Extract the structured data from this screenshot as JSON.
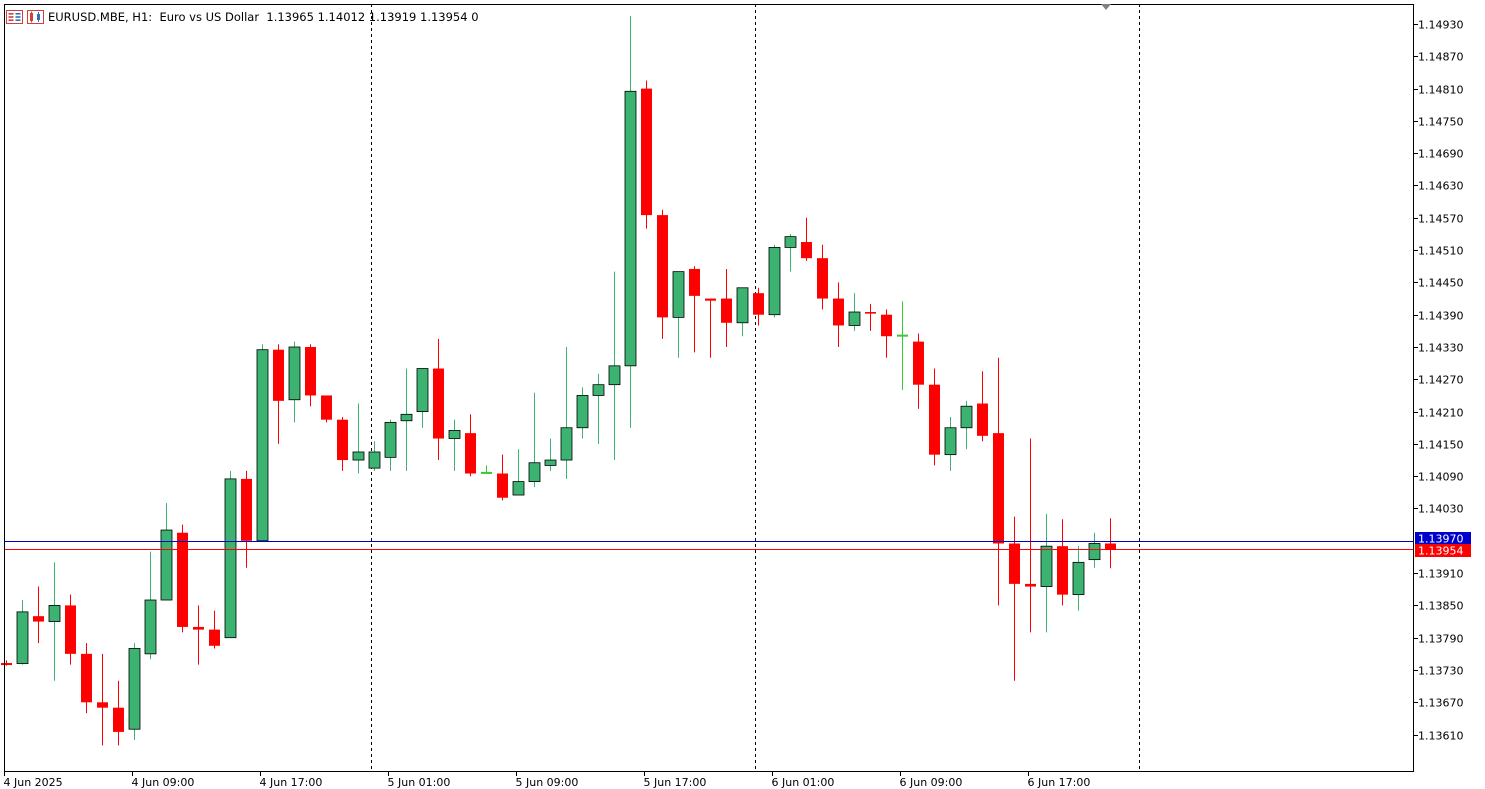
{
  "header": {
    "symbol": "EURUSD.MBE, H1:",
    "description": "Euro vs US Dollar",
    "ohlc": "1.13965 1.14012 1.13919 1.13954",
    "volume": "0",
    "icons": [
      "trade-panel-icon",
      "chart-properties-icon"
    ]
  },
  "colors": {
    "bull": "#3CB371",
    "bear": "#FF0000",
    "doji": "#32CD32",
    "bid_line": "#FF0000",
    "ask_line": "#0000CD",
    "grid_separator": "#000000",
    "background": "#FFFFFF"
  },
  "chart_data": {
    "type": "candlestick",
    "symbol": "EURUSD.MBE",
    "timeframe": "H1",
    "ylim": [
      1.1358,
      1.1498
    ],
    "y_ticks": [
      "1.14930",
      "1.14870",
      "1.14810",
      "1.14750",
      "1.14690",
      "1.14630",
      "1.14570",
      "1.14510",
      "1.14450",
      "1.14390",
      "1.14330",
      "1.14270",
      "1.14210",
      "1.14150",
      "1.14090",
      "1.14030",
      "1.13910",
      "1.13850",
      "1.13790",
      "1.13730",
      "1.13670",
      "1.13610"
    ],
    "x_ticks": [
      "4 Jun 2025",
      "4 Jun 09:00",
      "4 Jun 17:00",
      "5 Jun 01:00",
      "5 Jun 09:00",
      "5 Jun 17:00",
      "6 Jun 01:00",
      "6 Jun 09:00",
      "6 Jun 17:00"
    ],
    "x_tick_bars": [
      0,
      8,
      16,
      24,
      32,
      40,
      48,
      56,
      64
    ],
    "day_separator_bars": [
      22.8,
      46.8,
      70.8
    ],
    "bid": {
      "value": 1.13954,
      "label": "1.13954"
    },
    "ask": {
      "value": 1.1397,
      "label": "1.13970"
    },
    "candles": [
      [
        1.13742,
        1.13748,
        1.13738,
        1.13742
      ],
      [
        1.13742,
        1.1386,
        1.1374,
        1.13838
      ],
      [
        1.1383,
        1.13885,
        1.1378,
        1.1382
      ],
      [
        1.1382,
        1.1393,
        1.1371,
        1.1385
      ],
      [
        1.1385,
        1.1387,
        1.1374,
        1.1376
      ],
      [
        1.1376,
        1.1378,
        1.1365,
        1.1367
      ],
      [
        1.1367,
        1.1376,
        1.1359,
        1.1366
      ],
      [
        1.1366,
        1.1371,
        1.1359,
        1.13615
      ],
      [
        1.1362,
        1.1378,
        1.136,
        1.1377
      ],
      [
        1.1376,
        1.1395,
        1.1375,
        1.1386
      ],
      [
        1.1386,
        1.1404,
        1.1386,
        1.1399
      ],
      [
        1.13985,
        1.14,
        1.138,
        1.1381
      ],
      [
        1.1381,
        1.1385,
        1.1374,
        1.13805
      ],
      [
        1.13805,
        1.1384,
        1.1377,
        1.13775
      ],
      [
        1.1379,
        1.141,
        1.1379,
        1.14085
      ],
      [
        1.14085,
        1.141,
        1.1392,
        1.1397
      ],
      [
        1.1397,
        1.14335,
        1.1397,
        1.14325
      ],
      [
        1.14325,
        1.14335,
        1.1415,
        1.1423
      ],
      [
        1.14232,
        1.1434,
        1.1419,
        1.1433
      ],
      [
        1.1433,
        1.14335,
        1.1422,
        1.1424
      ],
      [
        1.1424,
        1.1424,
        1.1419,
        1.14195
      ],
      [
        1.14195,
        1.142,
        1.141,
        1.1412
      ],
      [
        1.1412,
        1.14225,
        1.14095,
        1.14135
      ],
      [
        1.14105,
        1.14155,
        1.141,
        1.14135
      ],
      [
        1.14125,
        1.14195,
        1.141,
        1.1419
      ],
      [
        1.14193,
        1.1429,
        1.141,
        1.14205
      ],
      [
        1.1421,
        1.1429,
        1.1418,
        1.1429
      ],
      [
        1.1429,
        1.14345,
        1.1412,
        1.1416
      ],
      [
        1.1416,
        1.14195,
        1.141,
        1.14175
      ],
      [
        1.1417,
        1.14205,
        1.1409,
        1.14095
      ],
      [
        1.14095,
        1.1411,
        1.14095,
        1.14097
      ],
      [
        1.14095,
        1.1413,
        1.14045,
        1.1405
      ],
      [
        1.14055,
        1.1414,
        1.14055,
        1.1408
      ],
      [
        1.1408,
        1.14245,
        1.1407,
        1.14115
      ],
      [
        1.1411,
        1.1416,
        1.141,
        1.1412
      ],
      [
        1.1412,
        1.1433,
        1.14085,
        1.1418
      ],
      [
        1.1418,
        1.14255,
        1.1416,
        1.1424
      ],
      [
        1.1424,
        1.1428,
        1.1415,
        1.1426
      ],
      [
        1.1426,
        1.1447,
        1.1412,
        1.14295
      ],
      [
        1.14295,
        1.14945,
        1.1418,
        1.14805
      ],
      [
        1.1481,
        1.14825,
        1.1455,
        1.14575
      ],
      [
        1.14575,
        1.14585,
        1.14345,
        1.14385
      ],
      [
        1.14385,
        1.1447,
        1.1431,
        1.1447
      ],
      [
        1.14475,
        1.1448,
        1.1432,
        1.14425
      ],
      [
        1.1442,
        1.1442,
        1.1431,
        1.14416
      ],
      [
        1.1442,
        1.14475,
        1.1433,
        1.14375
      ],
      [
        1.14375,
        1.1444,
        1.1435,
        1.1444
      ],
      [
        1.1443,
        1.1444,
        1.1437,
        1.1439
      ],
      [
        1.1439,
        1.1452,
        1.14385,
        1.14515
      ],
      [
        1.14515,
        1.1454,
        1.1447,
        1.14535
      ],
      [
        1.14525,
        1.1457,
        1.1449,
        1.14495
      ],
      [
        1.14495,
        1.1452,
        1.144,
        1.1442
      ],
      [
        1.1442,
        1.1445,
        1.1433,
        1.1437
      ],
      [
        1.1437,
        1.1443,
        1.1436,
        1.14395
      ],
      [
        1.14395,
        1.1441,
        1.1436,
        1.14392
      ],
      [
        1.1439,
        1.144,
        1.1431,
        1.1435
      ],
      [
        1.1435,
        1.14415,
        1.1425,
        1.14352
      ],
      [
        1.1434,
        1.14355,
        1.14215,
        1.1426
      ],
      [
        1.1426,
        1.1429,
        1.1411,
        1.1413
      ],
      [
        1.1413,
        1.142,
        1.141,
        1.1418
      ],
      [
        1.1418,
        1.1423,
        1.1414,
        1.1422
      ],
      [
        1.14225,
        1.14285,
        1.14155,
        1.14165
      ],
      [
        1.1417,
        1.1431,
        1.1385,
        1.13965
      ],
      [
        1.13965,
        1.14015,
        1.1371,
        1.1389
      ],
      [
        1.1389,
        1.1416,
        1.138,
        1.13885
      ],
      [
        1.13885,
        1.1402,
        1.138,
        1.1396
      ],
      [
        1.1396,
        1.1401,
        1.1385,
        1.1387
      ],
      [
        1.1387,
        1.1396,
        1.1384,
        1.1393
      ],
      [
        1.13935,
        1.13985,
        1.1392,
        1.13965
      ],
      [
        1.13965,
        1.14012,
        1.13919,
        1.13954
      ]
    ]
  }
}
